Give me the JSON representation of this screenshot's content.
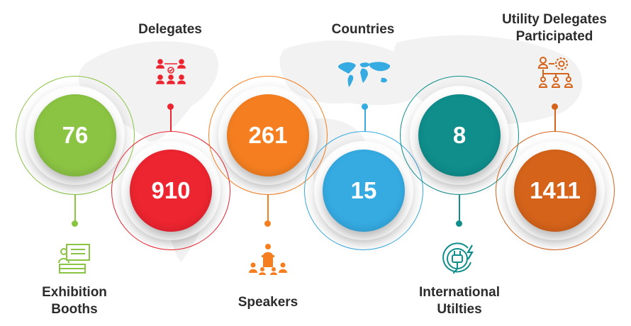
{
  "stats": [
    {
      "id": "exhibition",
      "value": "76",
      "label_line1": "Exhibition",
      "label_line2": "Booths",
      "color": "#8BC443",
      "icon": "exhibition-booth-icon"
    },
    {
      "id": "delegates",
      "value": "910",
      "label_line1": "Delegates",
      "label_line2": "",
      "color": "#EC2530",
      "icon": "delegates-network-icon"
    },
    {
      "id": "speakers",
      "value": "261",
      "label_line1": "Speakers",
      "label_line2": "",
      "color": "#F57F20",
      "icon": "speaker-podium-icon"
    },
    {
      "id": "countries",
      "value": "15",
      "label_line1": "Countries",
      "label_line2": "",
      "color": "#35ABE2",
      "icon": "world-map-icon"
    },
    {
      "id": "utilities",
      "value": "8",
      "label_line1": "International",
      "label_line2": "Utilties",
      "color": "#0F8E8C",
      "icon": "power-plug-icon"
    },
    {
      "id": "utility_delegates",
      "value": "1411",
      "label_line1": "Utility Delegates",
      "label_line2": "Participated",
      "color": "#D5631A",
      "icon": "org-chart-gear-icon"
    }
  ]
}
